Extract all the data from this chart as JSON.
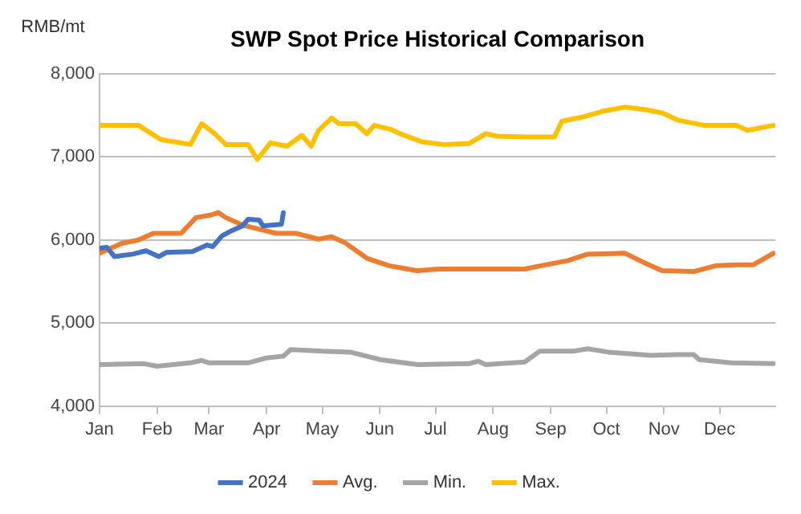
{
  "chart_data": {
    "type": "line",
    "title": "SWP Spot Price Historical Comparison",
    "ylabel": "RMB/mt",
    "xlim": [
      "--01-01",
      "--12-31"
    ],
    "xticks": [
      {
        "value": "--01-01",
        "label": "Jan"
      },
      {
        "value": "--02-01",
        "label": "Feb"
      },
      {
        "value": "--03-01",
        "label": "Mar"
      },
      {
        "value": "--04-01",
        "label": "Apr"
      },
      {
        "value": "--05-01",
        "label": "May"
      },
      {
        "value": "--06-01",
        "label": "Jun"
      },
      {
        "value": "--07-01",
        "label": "Jul"
      },
      {
        "value": "--08-01",
        "label": "Aug"
      },
      {
        "value": "--09-01",
        "label": "Sep"
      },
      {
        "value": "--10-01",
        "label": "Oct"
      },
      {
        "value": "--11-01",
        "label": "Nov"
      },
      {
        "value": "--12-01",
        "label": "Dec"
      }
    ],
    "ylim": [
      4000,
      8000
    ],
    "yticks": [
      {
        "value": 4000,
        "label": "4,000"
      },
      {
        "value": 5000,
        "label": "5,000"
      },
      {
        "value": 6000,
        "label": "6,000"
      },
      {
        "value": 7000,
        "label": "7,000"
      },
      {
        "value": 8000,
        "label": "8,000"
      }
    ],
    "grid": "y",
    "legend": "bottom",
    "marker": "none",
    "line_style": "solid",
    "series": [
      {
        "name": "2024",
        "color": "#4472c4",
        "x": [
          "--01-01",
          "--01-05",
          "--01-09",
          "--01-19",
          "--01-26",
          "--02-02",
          "--02-06",
          "--02-20",
          "--02-28",
          "--03-03",
          "--03-08",
          "--03-13",
          "--03-19",
          "--03-22",
          "--03-28",
          "--03-30",
          "--04-09",
          "--04-10"
        ],
        "values": [
          5900,
          5910,
          5800,
          5830,
          5870,
          5800,
          5850,
          5860,
          5940,
          5920,
          6050,
          6110,
          6170,
          6250,
          6240,
          6170,
          6190,
          6330
        ]
      },
      {
        "name": "Avg.",
        "color": "#ed7d31",
        "x": [
          "--01-01",
          "--01-13",
          "--01-22",
          "--01-30",
          "--02-14",
          "--02-22",
          "--03-02",
          "--03-06",
          "--03-10",
          "--03-19",
          "--03-28",
          "--04-06",
          "--04-17",
          "--04-29",
          "--05-06",
          "--05-13",
          "--05-25",
          "--06-06",
          "--06-21",
          "--07-03",
          "--07-31",
          "--08-18",
          "--08-29",
          "--09-10",
          "--09-21",
          "--10-11",
          "--10-22",
          "--10-31",
          "--11-17",
          "--11-29",
          "--12-10",
          "--12-19",
          "--12-30"
        ],
        "values": [
          5840,
          5960,
          6000,
          6080,
          6080,
          6270,
          6300,
          6330,
          6270,
          6180,
          6130,
          6080,
          6080,
          6010,
          6040,
          5970,
          5780,
          5690,
          5630,
          5650,
          5650,
          5650,
          5700,
          5750,
          5830,
          5840,
          5720,
          5630,
          5620,
          5690,
          5700,
          5700,
          5840
        ]
      },
      {
        "name": "Min.",
        "color": "#a5a5a5",
        "x": [
          "--01-01",
          "--01-25",
          "--02-01",
          "--02-19",
          "--02-25",
          "--03-01",
          "--03-22",
          "--04-01",
          "--04-10",
          "--04-14",
          "--05-01",
          "--05-16",
          "--06-01",
          "--06-21",
          "--07-19",
          "--07-24",
          "--07-28",
          "--08-18",
          "--08-26",
          "--09-13",
          "--09-21",
          "--10-02",
          "--10-25",
          "--11-09",
          "--11-17",
          "--11-20",
          "--12-07",
          "--12-30"
        ],
        "values": [
          4500,
          4510,
          4480,
          4520,
          4550,
          4520,
          4520,
          4580,
          4600,
          4680,
          4660,
          4650,
          4560,
          4500,
          4510,
          4540,
          4500,
          4530,
          4660,
          4660,
          4690,
          4650,
          4610,
          4620,
          4620,
          4560,
          4520,
          4510
        ]
      },
      {
        "name": "Max.",
        "color": "#ffc000",
        "x": [
          "--01-01",
          "--01-22",
          "--02-03",
          "--02-19",
          "--02-25",
          "--02-28",
          "--03-04",
          "--03-10",
          "--03-22",
          "--03-27",
          "--04-03",
          "--04-12",
          "--04-20",
          "--04-25",
          "--04-29",
          "--05-06",
          "--05-10",
          "--05-19",
          "--05-25",
          "--05-29",
          "--06-07",
          "--06-13",
          "--06-24",
          "--07-05",
          "--07-19",
          "--07-28",
          "--08-03",
          "--08-18",
          "--09-03",
          "--09-07",
          "--09-18",
          "--09-29",
          "--10-11",
          "--10-22",
          "--10-31",
          "--11-09",
          "--11-23",
          "--12-10",
          "--12-16",
          "--12-30"
        ],
        "values": [
          7380,
          7380,
          7210,
          7150,
          7400,
          7350,
          7280,
          7150,
          7150,
          6970,
          7170,
          7130,
          7260,
          7130,
          7320,
          7470,
          7400,
          7400,
          7280,
          7380,
          7330,
          7270,
          7180,
          7150,
          7160,
          7280,
          7250,
          7240,
          7240,
          7430,
          7480,
          7550,
          7600,
          7570,
          7530,
          7440,
          7380,
          7380,
          7320,
          7380
        ]
      }
    ]
  }
}
